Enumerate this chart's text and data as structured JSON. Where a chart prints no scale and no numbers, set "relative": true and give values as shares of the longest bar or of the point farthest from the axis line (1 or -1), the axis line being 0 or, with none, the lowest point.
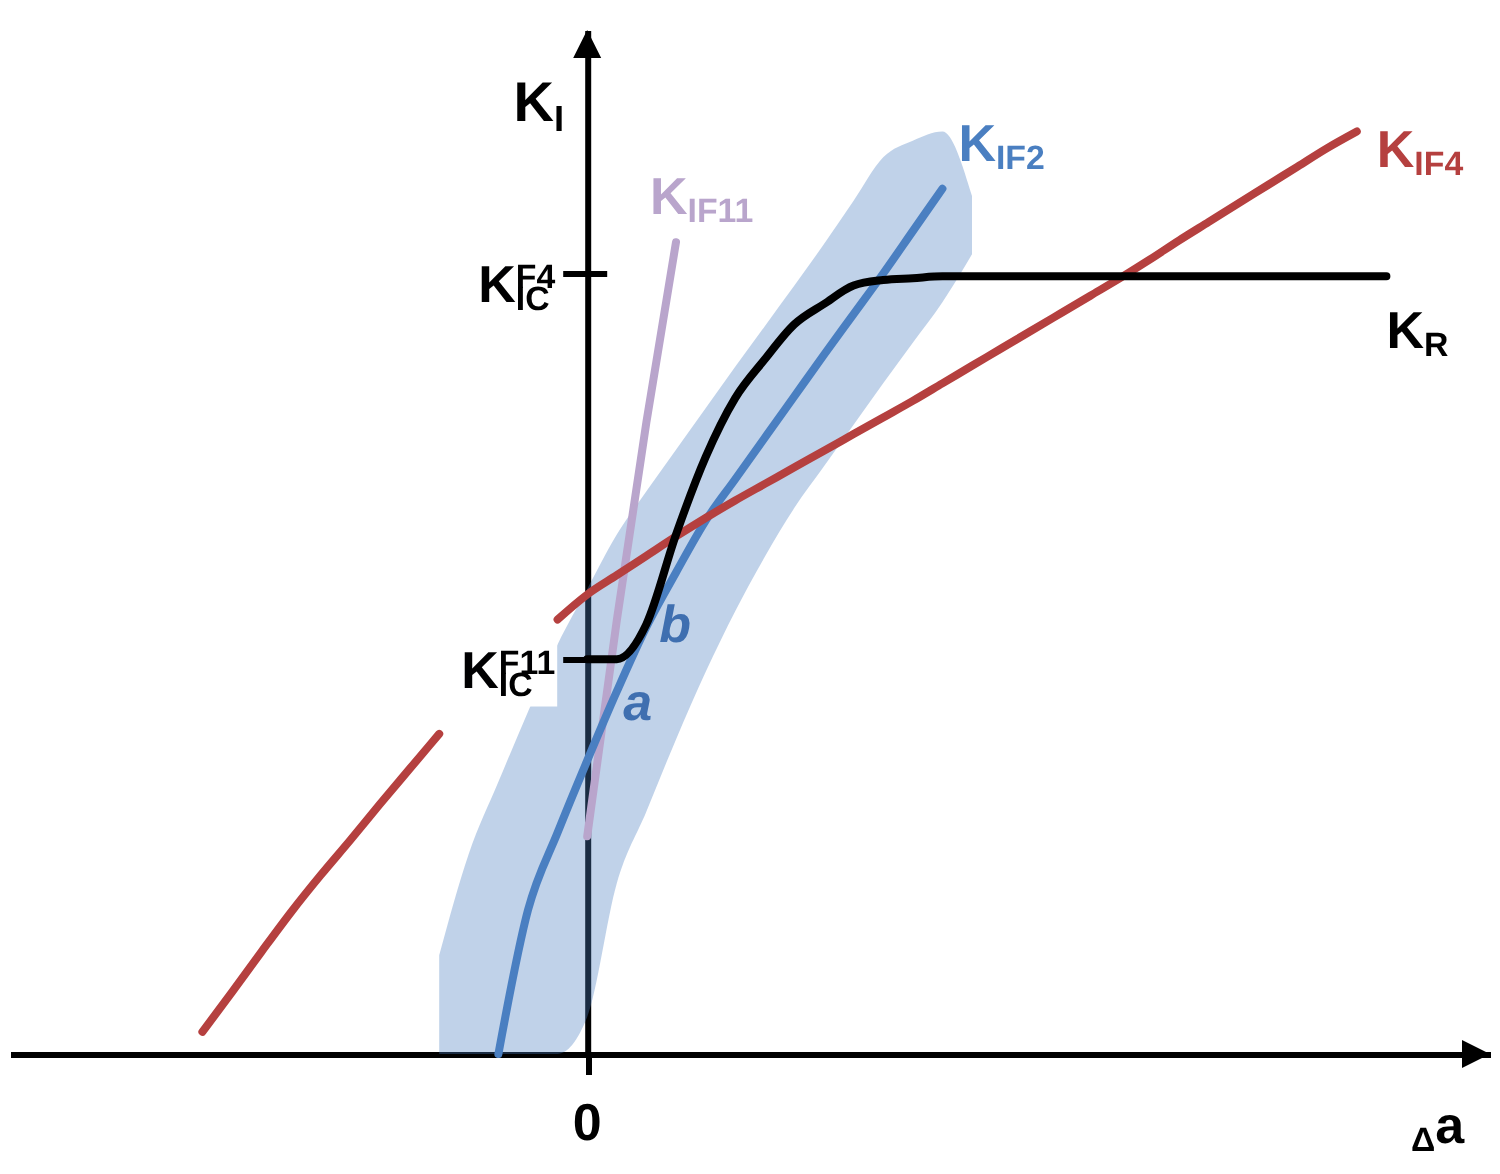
{
  "chart_data": {
    "type": "line",
    "relative": true,
    "xlabel": "$_{Δ}$a",
    "ylabel": "K$_{I}$",
    "line_style": "solid",
    "categories": [
      null,
      null,
      null,
      null,
      null,
      null,
      null,
      null,
      null,
      null,
      null,
      null,
      null,
      null,
      null,
      null,
      null,
      null,
      null,
      null,
      null,
      null,
      null,
      null,
      null,
      null,
      null,
      null,
      null,
      null,
      null,
      null,
      null,
      null,
      null,
      null,
      null,
      null,
      null,
      null,
      null,
      null,
      null,
      null,
      null,
      null,
      null,
      null,
      null,
      null
    ],
    "series": [
      {
        "name": "K$_{IF11}$",
        "color": "#b9a5cc",
        "values": [
          null,
          null,
          null,
          null,
          null,
          null,
          null,
          null,
          null,
          null,
          null,
          null,
          null,
          null,
          null,
          null,
          null,
          null,
          null,
          0.236,
          0.47,
          0.685,
          0.88,
          null,
          null,
          null,
          null,
          null,
          null,
          null,
          null,
          null,
          null,
          null,
          null,
          null,
          null,
          null,
          null,
          null,
          null,
          null,
          null,
          null,
          null,
          null,
          null,
          null,
          null,
          null
        ]
      },
      {
        "name": "K$_{IF2}$",
        "color": "#4a7fc1",
        "values": [
          null,
          null,
          null,
          null,
          null,
          null,
          null,
          null,
          null,
          null,
          null,
          null,
          null,
          null,
          null,
          null,
          0,
          0.156,
          0.24,
          0.318,
          0.393,
          0.463,
          0.522,
          0.578,
          0.623,
          0.668,
          0.713,
          0.758,
          0.802,
          0.846,
          0.892,
          0.938,
          null,
          null,
          null,
          null,
          null,
          null,
          null,
          null,
          null,
          null,
          null,
          null,
          null,
          null,
          null,
          null,
          null,
          null
        ],
        "lower": [
          null,
          null,
          null,
          null,
          null,
          null,
          null,
          null,
          null,
          null,
          null,
          null,
          null,
          null,
          0,
          0,
          0,
          0,
          0,
          0.04,
          0.185,
          0.263,
          0.341,
          0.414,
          0.48,
          0.539,
          0.592,
          0.637,
          0.682,
          0.727,
          0.771,
          0.815,
          0.867,
          null,
          null,
          null,
          null,
          null,
          null,
          null,
          null,
          null,
          null,
          null,
          null,
          null,
          null,
          null,
          null,
          null
        ],
        "upper": [
          null,
          null,
          null,
          null,
          null,
          null,
          null,
          null,
          null,
          null,
          null,
          null,
          null,
          null,
          0.107,
          0.217,
          0.295,
          0.371,
          0.444,
          0.504,
          0.563,
          0.61,
          0.655,
          0.7,
          0.745,
          0.789,
          0.833,
          0.878,
          0.925,
          0.972,
          0.99,
          1.0,
          0.93,
          null,
          null,
          null,
          null,
          null,
          null,
          null,
          null,
          null,
          null,
          null,
          null,
          null,
          null,
          null,
          null,
          null
        ]
      },
      {
        "name": "K$_{IF4}$",
        "color": "#b5403f",
        "values": [
          null,
          null,
          null,
          null,
          null,
          null,
          0.024,
          0.067,
          0.111,
          0.154,
          0.194,
          0.232,
          0.271,
          0.309,
          0.347,
          null,
          null,
          null,
          0.471,
          0.498,
          0.519,
          0.54,
          0.561,
          0.581,
          0.6,
          0.618,
          0.636,
          0.654,
          0.672,
          0.69,
          0.708,
          0.727,
          0.746,
          0.765,
          0.784,
          0.803,
          0.822,
          0.841,
          0.861,
          0.882,
          0.902,
          0.922,
          0.942,
          0.962,
          0.982,
          1.0,
          null,
          null,
          null,
          null
        ]
      },
      {
        "name": "K$_{R}$",
        "color": "#000000",
        "values": [
          null,
          null,
          null,
          null,
          null,
          null,
          null,
          null,
          null,
          null,
          null,
          null,
          null,
          null,
          null,
          null,
          null,
          null,
          null,
          0.428,
          0.428,
          0.466,
          0.563,
          0.647,
          0.711,
          0.753,
          0.791,
          0.813,
          0.833,
          0.839,
          0.841,
          0.843,
          0.843,
          0.843,
          0.843,
          0.843,
          0.843,
          0.843,
          0.843,
          0.843,
          0.843,
          0.843,
          0.843,
          0.843,
          0.843,
          0.843,
          0.843,
          null,
          null,
          null
        ]
      }
    ],
    "annotations": [
      "K$_{IC}$$^{F4}$",
      "K$_{IC}$$^{F11}$",
      "0",
      "a",
      "b"
    ]
  }
}
